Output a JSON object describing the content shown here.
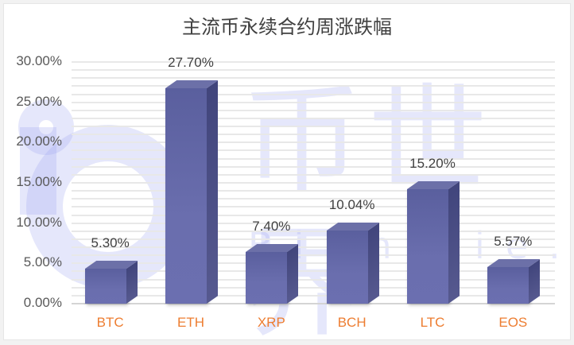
{
  "chart_data": {
    "type": "bar",
    "title": "主流币永续合约周涨跌幅",
    "categories": [
      "BTC",
      "ETH",
      "XRP",
      "BCH",
      "LTC",
      "EOS"
    ],
    "values": [
      5.3,
      27.7,
      7.4,
      10.04,
      15.2,
      5.57
    ],
    "value_labels": [
      "5.30%",
      "27.70%",
      "7.40%",
      "10.04%",
      "15.20%",
      "5.57%"
    ],
    "xlabel": "",
    "ylabel": "",
    "ylim": [
      0,
      30
    ],
    "yticks": [
      "0.00%",
      "5.00%",
      "10.00%",
      "15.00%",
      "20.00%",
      "25.00%",
      "30.00%"
    ],
    "grid": true,
    "style": "3d-column",
    "bar_color": "#6569a8",
    "category_label_color": "#ed7d31"
  },
  "watermark": {
    "text": "币世界",
    "subtext": "BiShiJie.com"
  }
}
